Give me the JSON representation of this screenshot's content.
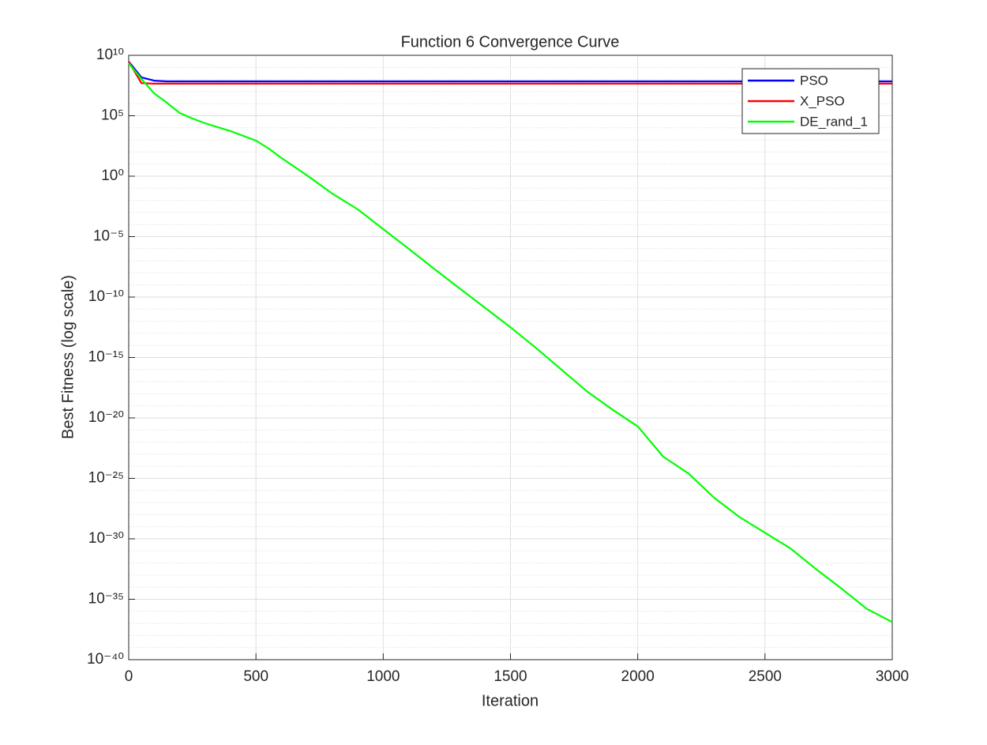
{
  "chart_data": {
    "type": "line",
    "title": "Function 6 Convergence Curve",
    "xlabel": "Iteration",
    "ylabel": "Best Fitness (log scale)",
    "xlim": [
      0,
      3000
    ],
    "xticks": [
      0,
      500,
      1000,
      1500,
      2000,
      2500,
      3000
    ],
    "ylim": [
      1e-40,
      10000000000.0
    ],
    "yscale": "log",
    "yticks": [
      {
        "value": 1e-40,
        "label": "10⁻⁴⁰"
      },
      {
        "value": 1e-35,
        "label": "10⁻³⁵"
      },
      {
        "value": 1e-30,
        "label": "10⁻³⁰"
      },
      {
        "value": 1e-25,
        "label": "10⁻²⁵"
      },
      {
        "value": 1e-20,
        "label": "10⁻²⁰"
      },
      {
        "value": 1e-15,
        "label": "10⁻¹⁵"
      },
      {
        "value": 1e-10,
        "label": "10⁻¹⁰"
      },
      {
        "value": 1e-05,
        "label": "10⁻⁵"
      },
      {
        "value": 1,
        "label": "10⁰"
      },
      {
        "value": 100000.0,
        "label": "10⁵"
      },
      {
        "value": 10000000000.0,
        "label": "10¹⁰"
      }
    ],
    "grid": true,
    "minor_grid": true,
    "legend": "upper right",
    "series": [
      {
        "name": "PSO",
        "color": "#0000ff",
        "x": [
          0,
          50,
          100,
          150,
          3000
        ],
        "values": [
          3000000000.0,
          150000000.0,
          80000000.0,
          70000000.0,
          70000000.0
        ]
      },
      {
        "name": "X_PSO",
        "color": "#ff0000",
        "x": [
          0,
          50,
          100,
          3000
        ],
        "values": [
          3000000000.0,
          50000000.0,
          45000000.0,
          45000000.0
        ]
      },
      {
        "name": "DE_rand_1",
        "color": "#00ff00",
        "x": [
          0,
          50,
          100,
          150,
          200,
          250,
          300,
          400,
          500,
          550,
          600,
          700,
          800,
          900,
          1000,
          1100,
          1200,
          1300,
          1400,
          1500,
          1600,
          1700,
          1800,
          1900,
          2000,
          2100,
          2200,
          2300,
          2400,
          2500,
          2600,
          2700,
          2800,
          2900,
          3000
        ],
        "values": [
          2200000000.0,
          110000000.0,
          7200000.0,
          1200000.0,
          170000.0,
          59000.0,
          24000.0,
          5400.0,
          870,
          195,
          32,
          1.2,
          0.036,
          0.0018,
          4.2e-05,
          9.8e-07,
          2.2e-08,
          5.2e-10,
          1.3e-11,
          3.2e-13,
          6.3e-15,
          1e-16,
          1.6e-18,
          5e-20,
          2e-21,
          6.3e-24,
          2.5e-25,
          2.5e-27,
          6.3e-29,
          3.2e-30,
          1.6e-31,
          3.2e-33,
          7.9e-35,
          1.6e-36,
          1.3e-37
        ]
      }
    ]
  }
}
